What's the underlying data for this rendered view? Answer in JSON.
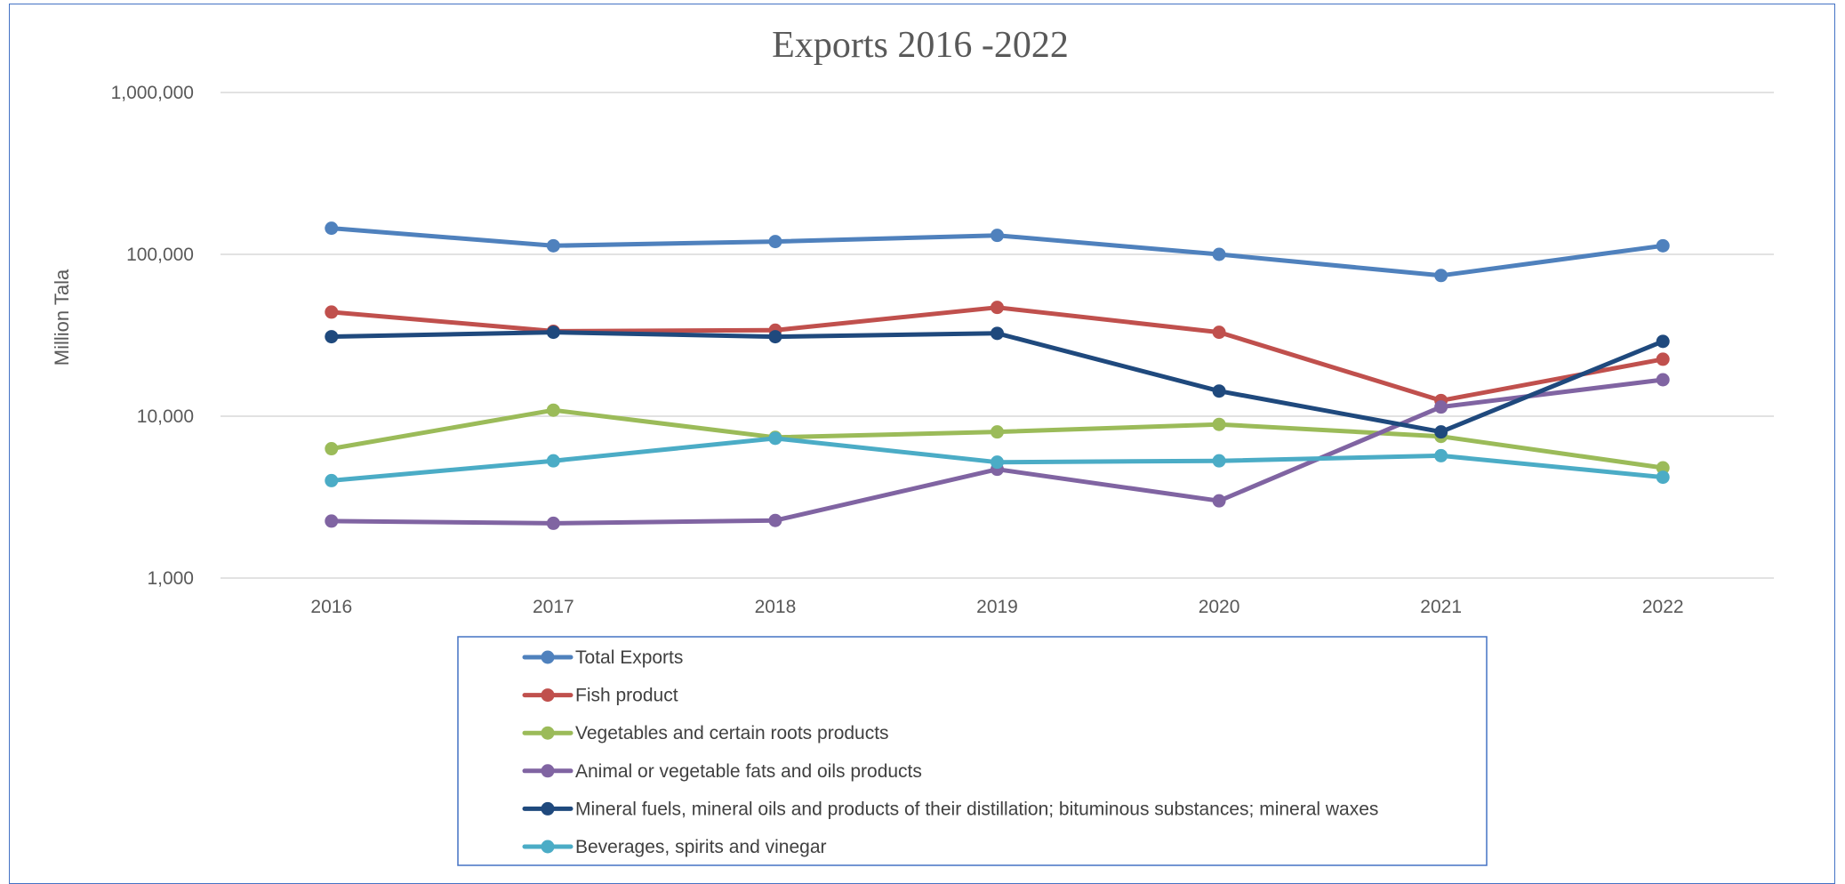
{
  "chart_data": {
    "type": "line",
    "title": "Exports 2016 -2022",
    "xlabel": "",
    "ylabel": "Million Tala",
    "yscale": "log",
    "ylim": [
      1000,
      1000000
    ],
    "yticks": [
      {
        "value": 1000,
        "label": "1,000"
      },
      {
        "value": 10000,
        "label": "10,000"
      },
      {
        "value": 100000,
        "label": "100,000"
      },
      {
        "value": 1000000,
        "label": "1,000,000"
      }
    ],
    "grid": true,
    "legend_position": "bottom",
    "categories": [
      "2016",
      "2017",
      "2018",
      "2019",
      "2020",
      "2021",
      "2022"
    ],
    "series": [
      {
        "name": "Total Exports",
        "color": "#4f81bd",
        "values": [
          145000,
          113000,
          120000,
          131000,
          100000,
          74000,
          113000
        ]
      },
      {
        "name": "Fish product",
        "color": "#c0504d",
        "values": [
          44000,
          33500,
          34000,
          47000,
          33000,
          12500,
          22500
        ]
      },
      {
        "name": "Vegetables and certain roots products",
        "color": "#9bbb59",
        "values": [
          6300,
          10900,
          7400,
          8000,
          8900,
          7500,
          4800
        ]
      },
      {
        "name": "Animal or vegetable fats and oils products",
        "color": "#8064a2",
        "values": [
          2250,
          2180,
          2270,
          4700,
          3000,
          11400,
          16800
        ]
      },
      {
        "name": "Mineral fuels, mineral oils and products of their distillation; bituminous substances; mineral waxes",
        "color": "#1f497d",
        "values": [
          31000,
          33000,
          31000,
          32500,
          14300,
          8000,
          29000
        ]
      },
      {
        "name": "Beverages, spirits and vinegar",
        "color": "#4bacc6",
        "values": [
          4000,
          5300,
          7300,
          5200,
          5300,
          5700,
          4200
        ]
      }
    ]
  }
}
